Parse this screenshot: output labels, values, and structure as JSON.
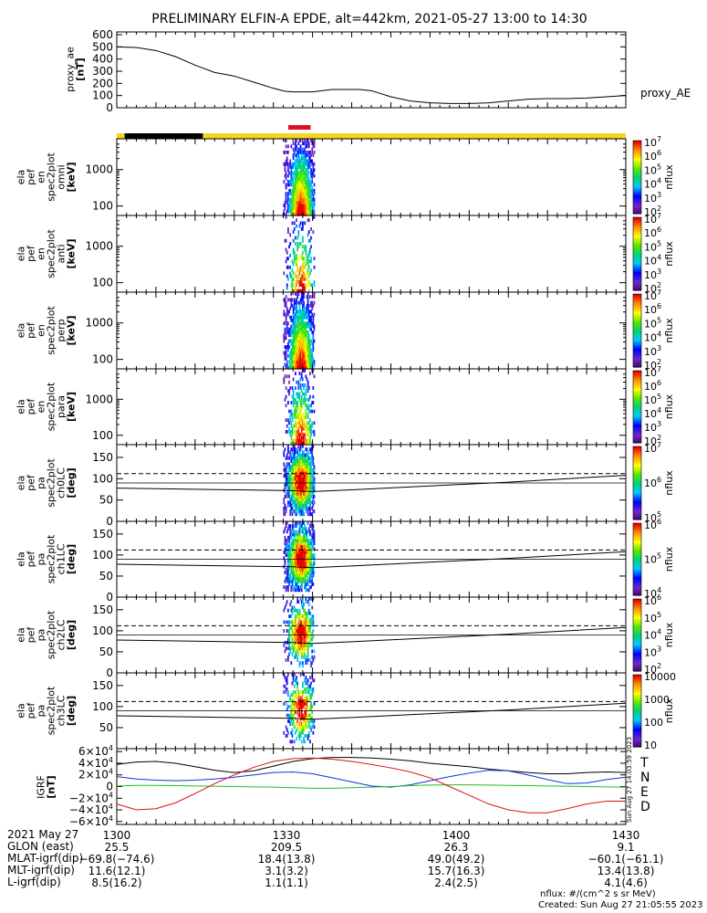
{
  "title": "PRELIMINARY ELFIN-A EPDE, alt=442km, 2021-05-27 13:00 to 14:30",
  "colors": {
    "yellow": "#f3d81f",
    "black": "#000000",
    "red": "#e01020",
    "igrf_T": "#000000",
    "igrf_N": "#1030e0",
    "igrf_E": "#20c020",
    "igrf_D": "#e01010"
  },
  "chart_data": [
    {
      "type": "line",
      "id": "proxy_ae",
      "ylabel": [
        "proxy_ae",
        "[nT]"
      ],
      "legend": "proxy_AE",
      "ylim": [
        0,
        600
      ],
      "yticks": [
        "0",
        "100",
        "200",
        "300",
        "400",
        "500",
        "600"
      ],
      "x": [
        1300,
        1305,
        1310,
        1315,
        1320,
        1325,
        1330,
        1335,
        1340,
        1343,
        1345,
        1350,
        1355,
        1358,
        1362,
        1365,
        1370,
        1375,
        1380,
        1385,
        1390,
        1395,
        1400,
        1405,
        1410,
        1415,
        1420,
        1425,
        1430
      ],
      "values": [
        500,
        495,
        470,
        420,
        350,
        290,
        260,
        210,
        160,
        135,
        130,
        130,
        150,
        150,
        150,
        140,
        90,
        55,
        40,
        35,
        35,
        40,
        55,
        70,
        75,
        75,
        80,
        90,
        100
      ]
    },
    {
      "type": "table",
      "id": "status_bar",
      "segments": [
        {
          "from": 1300,
          "to": 1302,
          "color": "yellow"
        },
        {
          "from": 1302,
          "to": 1322,
          "color": "black"
        },
        {
          "from": 1322,
          "to": 1430,
          "color": "yellow"
        }
      ],
      "red_marks_minutes": [
        1344.5,
        1345.5,
        1346.5,
        1347.2,
        1348.0,
        1348.8
      ]
    },
    {
      "type": "heatmap",
      "id": "en_omni",
      "ylabel": [
        "ela",
        "pef",
        "en",
        "spec2plot",
        "omni",
        "[keV]"
      ],
      "yticks": [
        "100",
        "1000"
      ],
      "zlabel": "nflux",
      "zticks": [
        "10^2",
        "10^3",
        "10^4",
        "10^5",
        "10^6",
        "10^7"
      ],
      "zmin": 2,
      "zmax": 7
    },
    {
      "type": "heatmap",
      "id": "en_anti",
      "ylabel": [
        "ela",
        "pef",
        "en",
        "spec2plot",
        "anti",
        "[keV]"
      ],
      "yticks": [
        "100",
        "1000"
      ],
      "zlabel": "nflux",
      "zticks": [
        "10^2",
        "10^3",
        "10^4",
        "10^5",
        "10^6",
        "10^7"
      ]
    },
    {
      "type": "heatmap",
      "id": "en_perp",
      "ylabel": [
        "ela",
        "pef",
        "en",
        "spec2plot",
        "perp",
        "[keV]"
      ],
      "yticks": [
        "100",
        "1000"
      ],
      "zlabel": "nflux",
      "zticks": [
        "10^2",
        "10^3",
        "10^4",
        "10^5",
        "10^6",
        "10^7"
      ]
    },
    {
      "type": "heatmap",
      "id": "en_para",
      "ylabel": [
        "ela",
        "pef",
        "en",
        "spec2plot",
        "para",
        "[keV]"
      ],
      "yticks": [
        "100",
        "1000"
      ],
      "zlabel": "nflux",
      "zticks": [
        "10^2",
        "10^3",
        "10^4",
        "10^5",
        "10^6",
        "10^7"
      ]
    },
    {
      "type": "heatmap",
      "id": "pa_ch0LC",
      "ylabel": [
        "ela",
        "pef",
        "pa",
        "spec2plot",
        "ch0LC",
        "[deg]"
      ],
      "yticks": [
        "0",
        "50",
        "100",
        "150"
      ],
      "ylim": [
        0,
        180
      ],
      "zlabel": "nflux",
      "zticks": [
        "10^5",
        "10^6",
        "10^7"
      ]
    },
    {
      "type": "heatmap",
      "id": "pa_ch1LC",
      "ylabel": [
        "ela",
        "pef",
        "pa",
        "spec2plot",
        "ch1LC",
        "[deg]"
      ],
      "yticks": [
        "0",
        "50",
        "100",
        "150"
      ],
      "ylim": [
        0,
        180
      ],
      "zlabel": "nflux",
      "zticks": [
        "10^4",
        "10^5",
        "10^6"
      ]
    },
    {
      "type": "heatmap",
      "id": "pa_ch2LC",
      "ylabel": [
        "ela",
        "pef",
        "pa",
        "spec2plot",
        "ch2LC",
        "[deg]"
      ],
      "yticks": [
        "0",
        "50",
        "100",
        "150"
      ],
      "ylim": [
        0,
        180
      ],
      "zlabel": "nflux",
      "zticks": [
        "10^2",
        "10^3",
        "10^4",
        "10^5",
        "10^6"
      ]
    },
    {
      "type": "heatmap",
      "id": "pa_ch3LC",
      "ylabel": [
        "ela",
        "pef",
        "pa",
        "spec2plot",
        "ch3LC",
        "[deg]"
      ],
      "yticks": [
        "50",
        "100",
        "150"
      ],
      "ylim": [
        0,
        180
      ],
      "zlabel": "nflux",
      "zticks": [
        "10",
        "100",
        "1000",
        "10000"
      ]
    },
    {
      "type": "line",
      "id": "igrf",
      "ylabel": [
        "IGRF",
        "[nT]"
      ],
      "ylim": [
        -65000,
        65000
      ],
      "yticks": [
        "6×10^4",
        "4×10^4",
        "2×10^4",
        "0",
        "−2×10^4",
        "−4×10^4",
        "−6×10^4"
      ],
      "x": [
        1300,
        1305,
        1310,
        1315,
        1320,
        1325,
        1330,
        1335,
        1340,
        1345,
        1350,
        1355,
        1360,
        1365,
        1370,
        1375,
        1380,
        1385,
        1390,
        1395,
        1400,
        1405,
        1410,
        1415,
        1420,
        1425,
        1430
      ],
      "series": [
        {
          "name": "T",
          "values": [
            38000,
            42000,
            43000,
            40000,
            34000,
            28000,
            24000,
            27000,
            35000,
            43000,
            48000,
            50000,
            50000,
            49000,
            47000,
            44000,
            40000,
            37000,
            34000,
            30000,
            27000,
            24000,
            22000,
            22000,
            24000,
            25000,
            24000
          ]
        },
        {
          "name": "N",
          "values": [
            17000,
            13000,
            11000,
            10000,
            11000,
            13000,
            16000,
            20000,
            24000,
            25000,
            22000,
            15000,
            8000,
            1000,
            -1000,
            3000,
            10000,
            17000,
            23000,
            28000,
            27000,
            20000,
            12000,
            5000,
            6000,
            12000,
            16000
          ]
        },
        {
          "name": "E",
          "values": [
            1000,
            2000,
            2000,
            1500,
            1000,
            500,
            0,
            -500,
            -1000,
            -2000,
            -3000,
            -3000,
            -2000,
            -1000,
            0,
            1500,
            2500,
            3000,
            3000,
            2500,
            2000,
            1500,
            1000,
            500,
            0,
            -500,
            -1000
          ]
        },
        {
          "name": "D",
          "values": [
            -30000,
            -40000,
            -38000,
            -28000,
            -12000,
            5000,
            20000,
            33000,
            43000,
            48000,
            49000,
            47000,
            43000,
            38000,
            32000,
            25000,
            15000,
            0,
            -15000,
            -30000,
            -40000,
            -45000,
            -45000,
            -38000,
            -30000,
            -25000,
            -25000
          ]
        }
      ]
    }
  ],
  "xaxis_ticks": [
    "1300",
    "1330",
    "1400",
    "1430"
  ],
  "ephemeris": [
    {
      "label": "2021 May 27",
      "values": [
        "1300",
        "1330",
        "1400",
        "1430"
      ]
    },
    {
      "label": "GLON (east)",
      "values": [
        "25.5",
        "209.5",
        "26.3",
        "9.1"
      ]
    },
    {
      "label": "MLAT-igrf(dip)",
      "values": [
        "−69.8(−74.6)",
        "18.4(13.8)",
        "49.0(49.2)",
        "−60.1(−61.1)"
      ]
    },
    {
      "label": "MLT-igrf(dip)",
      "values": [
        "11.6(12.1)",
        "3.1(3.2)",
        "15.7(16.3)",
        "13.4(13.8)"
      ]
    },
    {
      "label": "L-igrf(dip)",
      "values": [
        "8.5(16.2)",
        "1.1(1.1)",
        "2.4(2.5)",
        "4.1(4.6)"
      ]
    }
  ],
  "footer": {
    "units": "nflux: #/(cm^2 s sr MeV)",
    "created": "Created: Sun Aug 27 21:05:55 2023",
    "side_stamp": "Sun Aug 27 14:03:59 2023"
  }
}
